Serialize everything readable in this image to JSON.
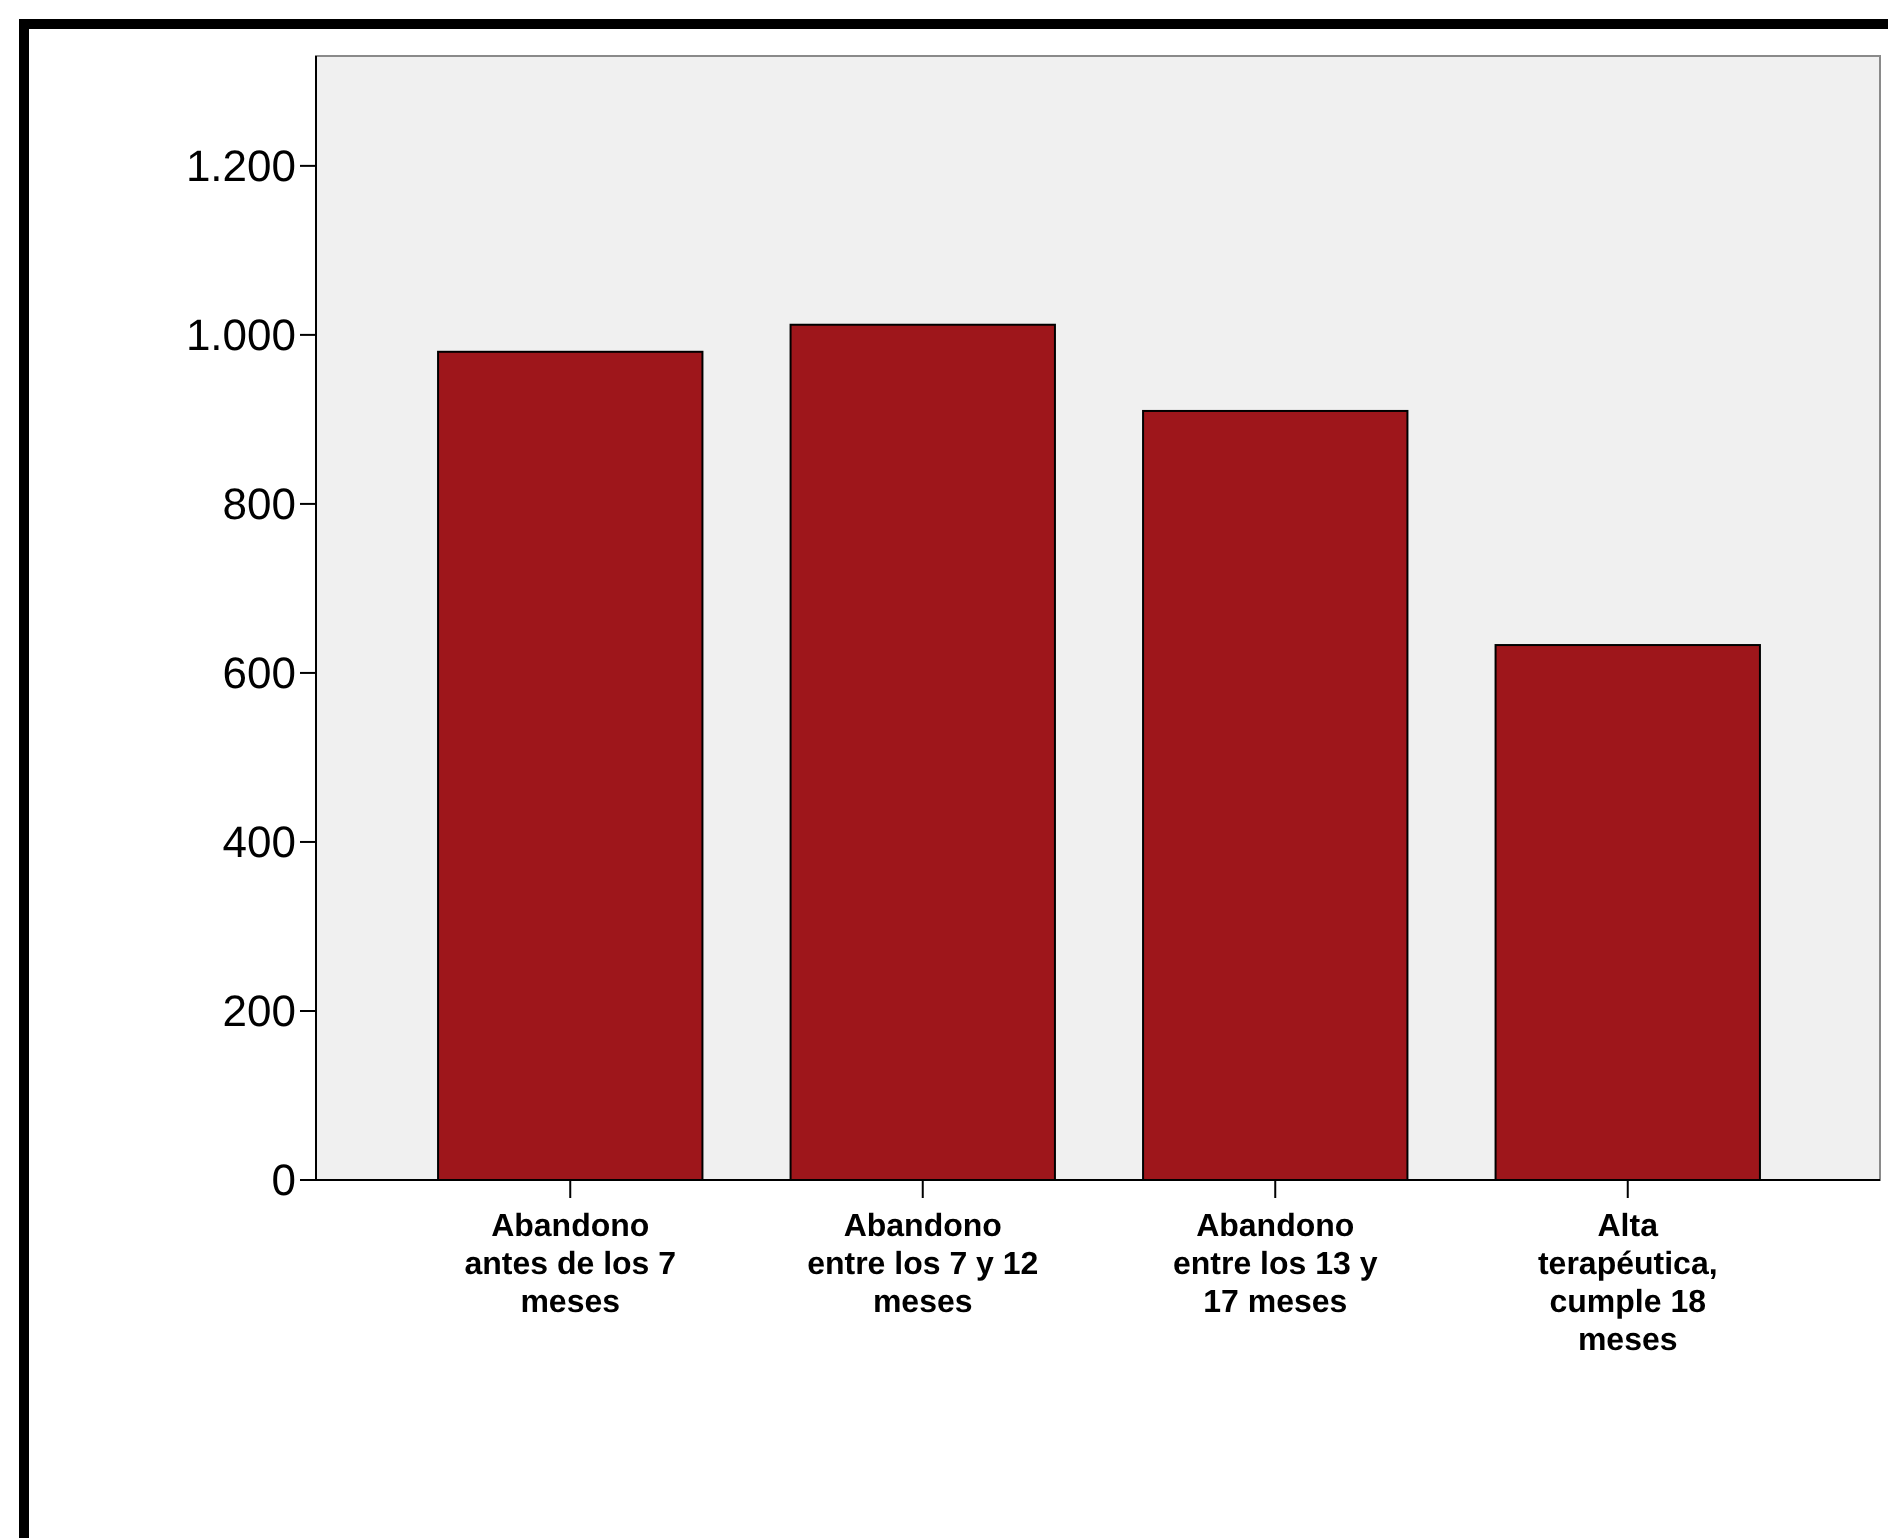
{
  "chart_data": {
    "type": "bar",
    "categories": [
      "Abandono antes de los 7 meses",
      "Abandono entre los 7 y 12 meses",
      "Abandono entre los 13 y 17 meses",
      "Alta terapéutica, cumple 18 meses"
    ],
    "values": [
      980,
      1012,
      910,
      633
    ],
    "color": "#9e161b",
    "ylim": [
      0,
      1330
    ],
    "yticks": [
      0,
      200,
      400,
      600,
      800,
      {
        "value": 1000,
        "label": "1.000"
      },
      {
        "value": 1200,
        "label": "1.200"
      }
    ],
    "grid": false
  }
}
